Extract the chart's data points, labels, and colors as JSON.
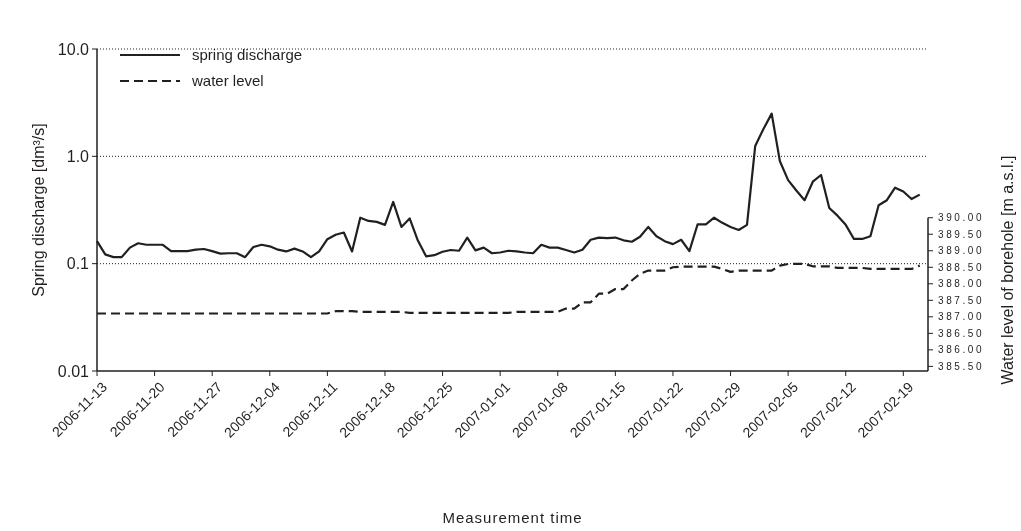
{
  "chart_data": {
    "type": "line",
    "xlabel": "Measurement time",
    "ylabel": "Spring discharge [dm³/s]",
    "y2label": "Water level of borehole [m a.s.l.]",
    "log": "y",
    "grid": "y",
    "legend": "top left",
    "marker": "none",
    "xlim": [
      "2006-11-13",
      "2007-02-22"
    ],
    "xticks": [
      "2006-11-13",
      "2006-11-20",
      "2006-11-27",
      "2006-12-04",
      "2006-12-11",
      "2006-12-18",
      "2006-12-25",
      "2007-01-01",
      "2007-01-08",
      "2007-01-15",
      "2007-01-22",
      "2007-01-29",
      "2007-02-05",
      "2007-02-12",
      "2007-02-19"
    ],
    "ylim": [
      0.01,
      10
    ],
    "yticks": [
      {
        "value": 0.01,
        "label": "0.01"
      },
      0.1,
      {
        "value": 1,
        "label": "1.0"
      },
      {
        "value": 10,
        "label": "10.0"
      }
    ],
    "y2lim": [
      385.36,
      390
    ],
    "y2ticks": [
      {
        "value": 385.5,
        "label": "385.50"
      },
      {
        "value": 386,
        "label": "386.00"
      },
      {
        "value": 386.5,
        "label": "386.50"
      },
      {
        "value": 387,
        "label": "387.00"
      },
      {
        "value": 387.5,
        "label": "387.50"
      },
      {
        "value": 388,
        "label": "388.00"
      },
      {
        "value": 388.5,
        "label": "388.50"
      },
      {
        "value": 389,
        "label": "389.00"
      },
      {
        "value": 389.5,
        "label": "389.50"
      },
      {
        "value": 390,
        "label": "390.00"
      }
    ],
    "x": [
      "2006-11-13",
      "2006-11-14",
      "2006-11-15",
      "2006-11-16",
      "2006-11-17",
      "2006-11-18",
      "2006-11-19",
      "2006-11-20",
      "2006-11-21",
      "2006-11-22",
      "2006-11-23",
      "2006-11-24",
      "2006-11-25",
      "2006-11-26",
      "2006-11-27",
      "2006-11-28",
      "2006-11-29",
      "2006-11-30",
      "2006-12-01",
      "2006-12-02",
      "2006-12-03",
      "2006-12-04",
      "2006-12-05",
      "2006-12-06",
      "2006-12-07",
      "2006-12-08",
      "2006-12-09",
      "2006-12-10",
      "2006-12-11",
      "2006-12-12",
      "2006-12-13",
      "2006-12-14",
      "2006-12-15",
      "2006-12-16",
      "2006-12-17",
      "2006-12-18",
      "2006-12-19",
      "2006-12-20",
      "2006-12-21",
      "2006-12-22",
      "2006-12-23",
      "2006-12-24",
      "2006-12-25",
      "2006-12-26",
      "2006-12-27",
      "2006-12-28",
      "2006-12-29",
      "2006-12-30",
      "2006-12-31",
      "2007-01-01",
      "2007-01-02",
      "2007-01-03",
      "2007-01-04",
      "2007-01-05",
      "2007-01-06",
      "2007-01-07",
      "2007-01-08",
      "2007-01-09",
      "2007-01-10",
      "2007-01-11",
      "2007-01-12",
      "2007-01-13",
      "2007-01-14",
      "2007-01-15",
      "2007-01-16",
      "2007-01-17",
      "2007-01-18",
      "2007-01-19",
      "2007-01-20",
      "2007-01-21",
      "2007-01-22",
      "2007-01-23",
      "2007-01-24",
      "2007-01-25",
      "2007-01-26",
      "2007-01-27",
      "2007-01-28",
      "2007-01-29",
      "2007-01-30",
      "2007-01-31",
      "2007-02-01",
      "2007-02-02",
      "2007-02-03",
      "2007-02-04",
      "2007-02-05",
      "2007-02-06",
      "2007-02-07",
      "2007-02-08",
      "2007-02-09",
      "2007-02-10",
      "2007-02-11",
      "2007-02-12",
      "2007-02-13",
      "2007-02-14",
      "2007-02-15",
      "2007-02-16",
      "2007-02-17",
      "2007-02-18",
      "2007-02-19",
      "2007-02-20",
      "2007-02-21"
    ],
    "series": [
      {
        "name": "spring discharge",
        "color": "#231f20",
        "line_style": "solid",
        "values": [
          0.162,
          0.122,
          0.115,
          0.115,
          0.141,
          0.155,
          0.15,
          0.15,
          0.15,
          0.131,
          0.131,
          0.131,
          0.135,
          0.137,
          0.131,
          0.124,
          0.125,
          0.125,
          0.115,
          0.143,
          0.15,
          0.145,
          0.135,
          0.13,
          0.138,
          0.13,
          0.115,
          0.13,
          0.169,
          0.186,
          0.195,
          0.13,
          0.268,
          0.25,
          0.245,
          0.23,
          0.376,
          0.22,
          0.264,
          0.164,
          0.117,
          0.12,
          0.129,
          0.134,
          0.132,
          0.175,
          0.133,
          0.141,
          0.125,
          0.127,
          0.132,
          0.13,
          0.127,
          0.125,
          0.15,
          0.141,
          0.141,
          0.134,
          0.127,
          0.135,
          0.167,
          0.175,
          0.173,
          0.175,
          0.165,
          0.16,
          0.178,
          0.22,
          0.18,
          0.162,
          0.152,
          0.167,
          0.131,
          0.233,
          0.232,
          0.268,
          0.24,
          0.22,
          0.206,
          0.23,
          1.25,
          1.8,
          2.5,
          0.9,
          0.6,
          0.48,
          0.39,
          0.58,
          0.67,
          0.33,
          0.28,
          0.23,
          0.17,
          0.17,
          0.18,
          0.35,
          0.39,
          0.51,
          0.47,
          0.4,
          0.44
        ]
      },
      {
        "name": "water level",
        "color": "#231f20",
        "line_style": "dashed",
        "axis": "y2",
        "values": [
          387.1,
          387.1,
          387.1,
          387.1,
          387.1,
          387.1,
          387.1,
          387.1,
          387.1,
          387.1,
          387.1,
          387.1,
          387.1,
          387.1,
          387.1,
          387.1,
          387.1,
          387.1,
          387.1,
          387.1,
          387.1,
          387.1,
          387.1,
          387.1,
          387.1,
          387.1,
          387.1,
          387.1,
          387.1,
          387.17,
          387.17,
          387.17,
          387.15,
          387.15,
          387.15,
          387.15,
          387.15,
          387.15,
          387.12,
          387.12,
          387.12,
          387.12,
          387.12,
          387.12,
          387.12,
          387.12,
          387.12,
          387.12,
          387.12,
          387.12,
          387.12,
          387.15,
          387.15,
          387.15,
          387.15,
          387.15,
          387.15,
          387.25,
          387.25,
          387.44,
          387.44,
          387.7,
          387.7,
          387.84,
          387.84,
          388.1,
          388.3,
          388.4,
          388.4,
          388.4,
          388.5,
          388.52,
          388.52,
          388.52,
          388.52,
          388.52,
          388.45,
          388.36,
          388.4,
          388.4,
          388.4,
          388.4,
          388.4,
          388.55,
          388.6,
          388.6,
          388.6,
          388.53,
          388.53,
          388.53,
          388.48,
          388.48,
          388.48,
          388.48,
          388.45,
          388.45,
          388.45,
          388.45,
          388.45,
          388.45,
          388.55
        ]
      }
    ]
  }
}
